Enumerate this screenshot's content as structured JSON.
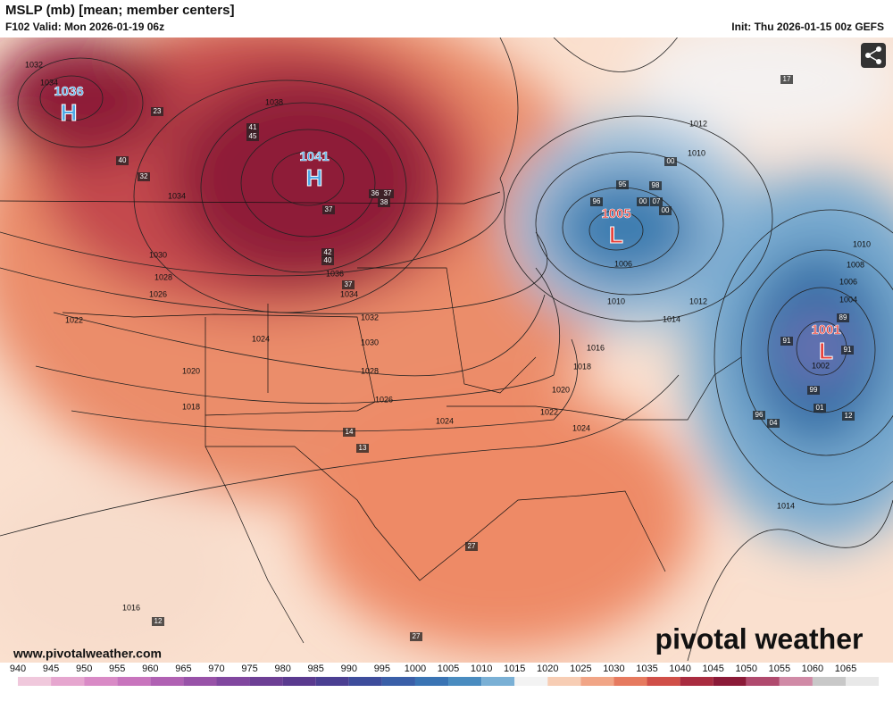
{
  "header": {
    "title": "MSLP (mb) [mean; member centers]",
    "valid": "F102 Valid: Mon 2026-01-19 06z",
    "init": "Init: Thu 2026-01-15 00z GEFS"
  },
  "centers": [
    {
      "value": "1036",
      "letter": "H"
    },
    {
      "value": "1041",
      "letter": "H"
    },
    {
      "value": "1005",
      "letter": "L"
    },
    {
      "value": "1001",
      "letter": "L"
    }
  ],
  "isobar_labels": [
    "1032",
    "1034",
    "1038",
    "1034",
    "1030",
    "1028",
    "1026",
    "1022",
    "1024",
    "1020",
    "1018",
    "1036",
    "1034",
    "1032",
    "1030",
    "1028",
    "1026",
    "1024",
    "1022",
    "1024",
    "1020",
    "1018",
    "1016",
    "1014",
    "1012",
    "1010",
    "1006",
    "1012",
    "1010",
    "1010",
    "1008",
    "1006",
    "1004",
    "1002",
    "1014",
    "1016"
  ],
  "member_labels": [
    "23",
    "40",
    "32",
    "41",
    "45",
    "42",
    "40",
    "37",
    "37",
    "36",
    "37",
    "38",
    "14",
    "13",
    "27",
    "27",
    "12",
    "17",
    "95",
    "98",
    "00",
    "96",
    "00",
    "07",
    "00",
    "89",
    "91",
    "91",
    "99",
    "01",
    "12",
    "96",
    "04"
  ],
  "footer": {
    "url": "www.pivotalweather.com",
    "brand": "pivotal weather"
  },
  "colorbar": {
    "ticks": [
      940,
      945,
      950,
      955,
      960,
      965,
      970,
      975,
      980,
      985,
      990,
      995,
      1000,
      1005,
      1010,
      1015,
      1020,
      1025,
      1030,
      1035,
      1040,
      1045,
      1050,
      1055,
      1060,
      1065
    ]
  }
}
